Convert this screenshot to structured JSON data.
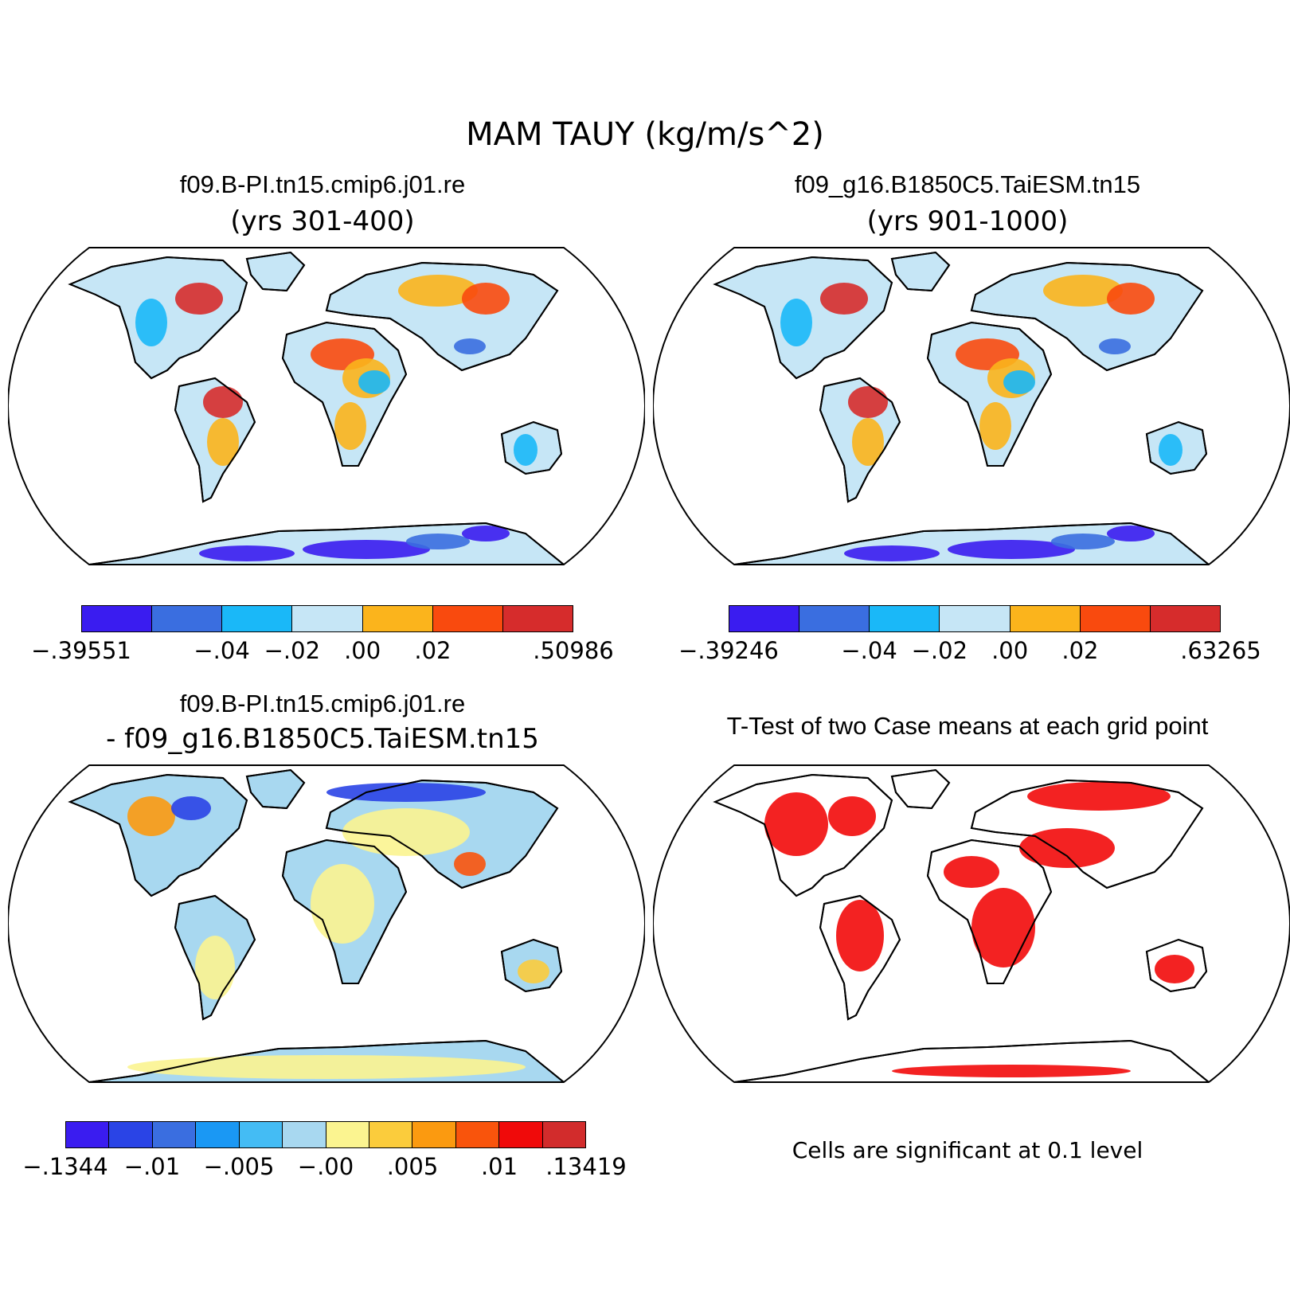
{
  "title": "MAM TAUY (kg/m/s^2)",
  "panels": [
    {
      "id": "case1",
      "title": "f09.B-PI.tn15.cmip6.j01.re",
      "subtitle": "(yrs 301-400)",
      "colorbar": {
        "colors": [
          "#3a1cf0",
          "#3a6ee0",
          "#1ab8f8",
          "#c6e6f6",
          "#fbb41c",
          "#f94a0e",
          "#d62c2c"
        ],
        "labels": [
          "-.39551",
          "-.04",
          "-.02",
          ".00",
          ".02",
          ".50986"
        ]
      }
    },
    {
      "id": "case2",
      "title": "f09_g16.B1850C5.TaiESM.tn15",
      "subtitle": "(yrs 901-1000)",
      "colorbar": {
        "colors": [
          "#3a1cf0",
          "#3a6ee0",
          "#1ab8f8",
          "#c6e6f6",
          "#fbb41c",
          "#f94a0e",
          "#d62c2c"
        ],
        "labels": [
          "-.39246",
          "-.04",
          "-.02",
          ".00",
          ".02",
          ".63265"
        ]
      }
    },
    {
      "id": "diff",
      "title": "f09.B-PI.tn15.cmip6.j01.re",
      "subtitle": "- f09_g16.B1850C5.TaiESM.tn15",
      "colorbar": {
        "colors": [
          "#3a1cf0",
          "#2a44e6",
          "#3a6ee0",
          "#1a98f4",
          "#44bcf4",
          "#a8d8f0",
          "#fbf490",
          "#fbcc3c",
          "#fb9a10",
          "#f9540c",
          "#f00a0a",
          "#d22c2c"
        ],
        "labels": [
          "-.1344",
          "-.01",
          "-.005",
          "-.00",
          ".005",
          ".01",
          ".13419"
        ]
      }
    },
    {
      "id": "ttest",
      "title": "T-Test of two Case means at each grid point",
      "note": "Cells are significant at 0.1 level",
      "fill": "#f20a0a"
    }
  ]
}
